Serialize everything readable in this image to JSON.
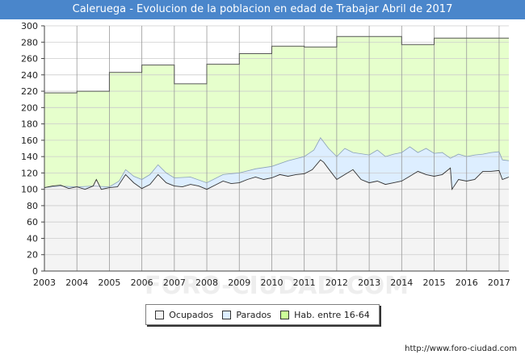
{
  "title": "Caleruega - Evolucion de la poblacion en edad de Trabajar Abril de 2017",
  "footer": "http://www.foro-ciudad.com",
  "watermark": "FORO-CIUDAD.COM",
  "colors": {
    "title_bg": "#4a86cb",
    "ocupados_fill": "#f4f4f4",
    "parados_fill": "#ddeeff",
    "hab_fill": "#e6ffcc",
    "line": "#333333",
    "grid": "#cccccc"
  },
  "legend": [
    {
      "label": "Ocupados",
      "color": "#f4f4f4"
    },
    {
      "label": "Parados",
      "color": "#ddeeff"
    },
    {
      "label": "Hab. entre 16-64",
      "color": "#ccff99"
    }
  ],
  "chart_data": {
    "type": "area",
    "xlim": [
      2003,
      2017.3
    ],
    "ylim": [
      0,
      300
    ],
    "x_ticks": [
      2003,
      2004,
      2005,
      2006,
      2007,
      2008,
      2009,
      2010,
      2011,
      2012,
      2013,
      2014,
      2015,
      2016,
      2017
    ],
    "y_ticks": [
      0,
      20,
      40,
      60,
      80,
      100,
      120,
      140,
      160,
      180,
      200,
      220,
      240,
      260,
      280,
      300
    ],
    "grid": true,
    "legend_position": "bottom",
    "series": [
      {
        "name": "Hab. entre 16-64",
        "step": true,
        "points": [
          [
            2003,
            218
          ],
          [
            2004,
            220
          ],
          [
            2005,
            243
          ],
          [
            2006,
            252
          ],
          [
            2007,
            229
          ],
          [
            2008,
            253
          ],
          [
            2009,
            266
          ],
          [
            2010,
            275
          ],
          [
            2011,
            274
          ],
          [
            2012,
            287
          ],
          [
            2013,
            287
          ],
          [
            2014,
            277
          ],
          [
            2015,
            285
          ],
          [
            2016,
            285
          ],
          [
            2017,
            285
          ],
          [
            2017.3,
            285
          ]
        ]
      },
      {
        "name": "Parados",
        "points": [
          [
            2003,
            102
          ],
          [
            2003.5,
            104
          ],
          [
            2004,
            103
          ],
          [
            2004.5,
            104
          ],
          [
            2005,
            103
          ],
          [
            2005.3,
            110
          ],
          [
            2005.5,
            124
          ],
          [
            2005.75,
            116
          ],
          [
            2006,
            112
          ],
          [
            2006.25,
            118
          ],
          [
            2006.5,
            130
          ],
          [
            2006.75,
            120
          ],
          [
            2007,
            114
          ],
          [
            2007.5,
            115
          ],
          [
            2008,
            108
          ],
          [
            2008.5,
            118
          ],
          [
            2009,
            120
          ],
          [
            2009.5,
            125
          ],
          [
            2010,
            128
          ],
          [
            2010.5,
            135
          ],
          [
            2011,
            140
          ],
          [
            2011.3,
            148
          ],
          [
            2011.5,
            163
          ],
          [
            2011.75,
            150
          ],
          [
            2012,
            140
          ],
          [
            2012.25,
            150
          ],
          [
            2012.5,
            145
          ],
          [
            2013,
            142
          ],
          [
            2013.25,
            148
          ],
          [
            2013.5,
            140
          ],
          [
            2013.75,
            143
          ],
          [
            2014,
            145
          ],
          [
            2014.25,
            152
          ],
          [
            2014.5,
            145
          ],
          [
            2014.75,
            150
          ],
          [
            2015,
            144
          ],
          [
            2015.25,
            145
          ],
          [
            2015.5,
            138
          ],
          [
            2015.75,
            143
          ],
          [
            2016,
            140
          ],
          [
            2016.25,
            142
          ],
          [
            2016.5,
            143
          ],
          [
            2016.75,
            145
          ],
          [
            2017,
            146
          ],
          [
            2017.1,
            136
          ],
          [
            2017.3,
            135
          ]
        ]
      },
      {
        "name": "Ocupados",
        "points": [
          [
            2003,
            102
          ],
          [
            2003.25,
            104
          ],
          [
            2003.5,
            105
          ],
          [
            2003.75,
            101
          ],
          [
            2004,
            103
          ],
          [
            2004.25,
            100
          ],
          [
            2004.5,
            104
          ],
          [
            2004.6,
            112
          ],
          [
            2004.75,
            100
          ],
          [
            2005,
            102
          ],
          [
            2005.25,
            103
          ],
          [
            2005.5,
            118
          ],
          [
            2005.75,
            108
          ],
          [
            2006,
            101
          ],
          [
            2006.25,
            106
          ],
          [
            2006.5,
            118
          ],
          [
            2006.75,
            108
          ],
          [
            2007,
            104
          ],
          [
            2007.25,
            103
          ],
          [
            2007.5,
            106
          ],
          [
            2007.75,
            104
          ],
          [
            2008,
            100
          ],
          [
            2008.25,
            105
          ],
          [
            2008.5,
            110
          ],
          [
            2008.75,
            107
          ],
          [
            2009,
            108
          ],
          [
            2009.25,
            112
          ],
          [
            2009.5,
            115
          ],
          [
            2009.75,
            112
          ],
          [
            2010,
            114
          ],
          [
            2010.25,
            118
          ],
          [
            2010.5,
            116
          ],
          [
            2010.75,
            118
          ],
          [
            2011,
            119
          ],
          [
            2011.25,
            124
          ],
          [
            2011.5,
            136
          ],
          [
            2011.6,
            133
          ],
          [
            2011.75,
            125
          ],
          [
            2012,
            112
          ],
          [
            2012.25,
            118
          ],
          [
            2012.5,
            124
          ],
          [
            2012.75,
            112
          ],
          [
            2013,
            108
          ],
          [
            2013.25,
            110
          ],
          [
            2013.5,
            106
          ],
          [
            2013.75,
            108
          ],
          [
            2014,
            110
          ],
          [
            2014.25,
            116
          ],
          [
            2014.5,
            122
          ],
          [
            2014.75,
            118
          ],
          [
            2015,
            116
          ],
          [
            2015.25,
            118
          ],
          [
            2015.5,
            126
          ],
          [
            2015.55,
            100
          ],
          [
            2015.75,
            112
          ],
          [
            2016,
            110
          ],
          [
            2016.25,
            112
          ],
          [
            2016.5,
            122
          ],
          [
            2016.75,
            122
          ],
          [
            2017,
            123
          ],
          [
            2017.1,
            112
          ],
          [
            2017.3,
            115
          ]
        ]
      }
    ]
  }
}
